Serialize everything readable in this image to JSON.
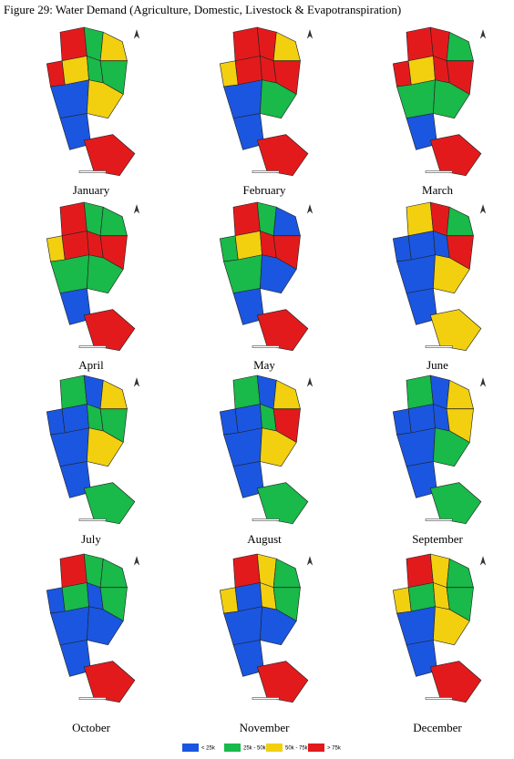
{
  "title": "Figure 29: Water Demand (Agriculture, Domestic, Livestock & Evapotranspiration)",
  "legend": [
    {
      "label": "< 25k",
      "color": "#1a56e0"
    },
    {
      "label": "25k - 50k",
      "color": "#19b94a"
    },
    {
      "label": "50k - 75k",
      "color": "#f2d010"
    },
    {
      "label": "> 75k",
      "color": "#e31a1c"
    }
  ],
  "maps": [
    {
      "label": "January",
      "classes": [
        3,
        1,
        2,
        3,
        2,
        1,
        1,
        0,
        0,
        3,
        2
      ]
    },
    {
      "label": "February",
      "classes": [
        3,
        3,
        2,
        2,
        3,
        3,
        3,
        0,
        0,
        3,
        1
      ]
    },
    {
      "label": "March",
      "classes": [
        3,
        3,
        1,
        3,
        2,
        3,
        3,
        1,
        0,
        3,
        1
      ]
    },
    {
      "label": "April",
      "classes": [
        3,
        1,
        1,
        2,
        3,
        3,
        3,
        1,
        0,
        3,
        1
      ]
    },
    {
      "label": "May",
      "classes": [
        3,
        1,
        0,
        1,
        2,
        3,
        3,
        1,
        0,
        3,
        0
      ]
    },
    {
      "label": "June",
      "classes": [
        2,
        3,
        1,
        0,
        0,
        0,
        3,
        0,
        0,
        2,
        2
      ]
    },
    {
      "label": "July",
      "classes": [
        1,
        0,
        2,
        0,
        0,
        1,
        1,
        0,
        0,
        1,
        2
      ]
    },
    {
      "label": "August",
      "classes": [
        1,
        0,
        2,
        0,
        0,
        1,
        3,
        0,
        0,
        1,
        2
      ]
    },
    {
      "label": "September",
      "classes": [
        1,
        0,
        2,
        0,
        0,
        0,
        2,
        0,
        0,
        1,
        1
      ]
    },
    {
      "label": "October",
      "classes": [
        3,
        1,
        1,
        0,
        1,
        0,
        1,
        0,
        0,
        3,
        0
      ]
    },
    {
      "label": "November",
      "classes": [
        3,
        2,
        1,
        2,
        0,
        2,
        1,
        0,
        0,
        3,
        0
      ]
    },
    {
      "label": "December",
      "classes": [
        3,
        2,
        1,
        2,
        1,
        2,
        1,
        0,
        0,
        3,
        2
      ]
    }
  ]
}
